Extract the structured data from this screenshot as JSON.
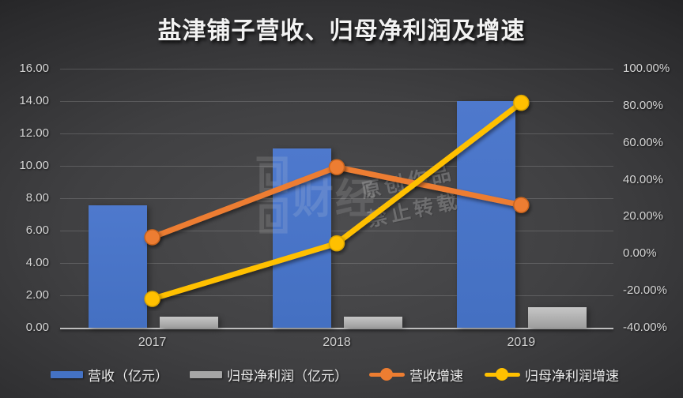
{
  "title": "盐津铺子营收、归母净利润及增速",
  "colors": {
    "revenue_bar": "#4472C4",
    "profit_bar": "#A6A6A6",
    "revenue_growth_line": "#ED7D31",
    "profit_growth_line": "#FFC000",
    "axis_text": "#D6D6D6",
    "axis_line": "#BDBDBD"
  },
  "chart_data": {
    "type": "bar+line",
    "categories": [
      "2017",
      "2018",
      "2019"
    ],
    "series": [
      {
        "name": "营收（亿元）",
        "type": "bar",
        "axis": "left",
        "color": "#4472C4",
        "values": [
          7.54,
          11.08,
          13.99
        ]
      },
      {
        "name": "归母净利润（亿元）",
        "type": "bar",
        "axis": "left",
        "color": "#A6A6A6",
        "values": [
          0.66,
          0.7,
          1.28
        ]
      },
      {
        "name": "营收增速",
        "type": "line",
        "axis": "right",
        "color": "#ED7D31",
        "values_pct": [
          8.9,
          46.8,
          26.3
        ]
      },
      {
        "name": "归母净利润增速",
        "type": "line",
        "axis": "right",
        "color": "#FFC000",
        "values_pct": [
          -24.4,
          5.6,
          81.6
        ]
      }
    ],
    "left_axis": {
      "min": 0,
      "max": 16,
      "ticks": [
        "16.00",
        "14.00",
        "12.00",
        "10.00",
        "8.00",
        "6.00",
        "4.00",
        "2.00",
        "0.00"
      ]
    },
    "right_axis": {
      "min": -40,
      "max": 100,
      "ticks": [
        "100.00%",
        "80.00%",
        "60.00%",
        "40.00%",
        "20.00%",
        "0.00%",
        "-20.00%",
        "-40.00%"
      ]
    },
    "grid": "horizontal",
    "legend_position": "bottom"
  },
  "legend": {
    "items": [
      {
        "label": "营收（亿元）",
        "swatch": "bar",
        "color": "#4472C4"
      },
      {
        "label": "归母净利润（亿元）",
        "swatch": "bar",
        "color": "#A6A6A6"
      },
      {
        "label": "营收增速",
        "swatch": "line",
        "color": "#ED7D31"
      },
      {
        "label": "归母净利润增速",
        "swatch": "line",
        "color": "#FFC000"
      }
    ]
  },
  "watermark": {
    "logo_text": "财经",
    "line1": "原创作品",
    "line2": "禁止转载"
  }
}
